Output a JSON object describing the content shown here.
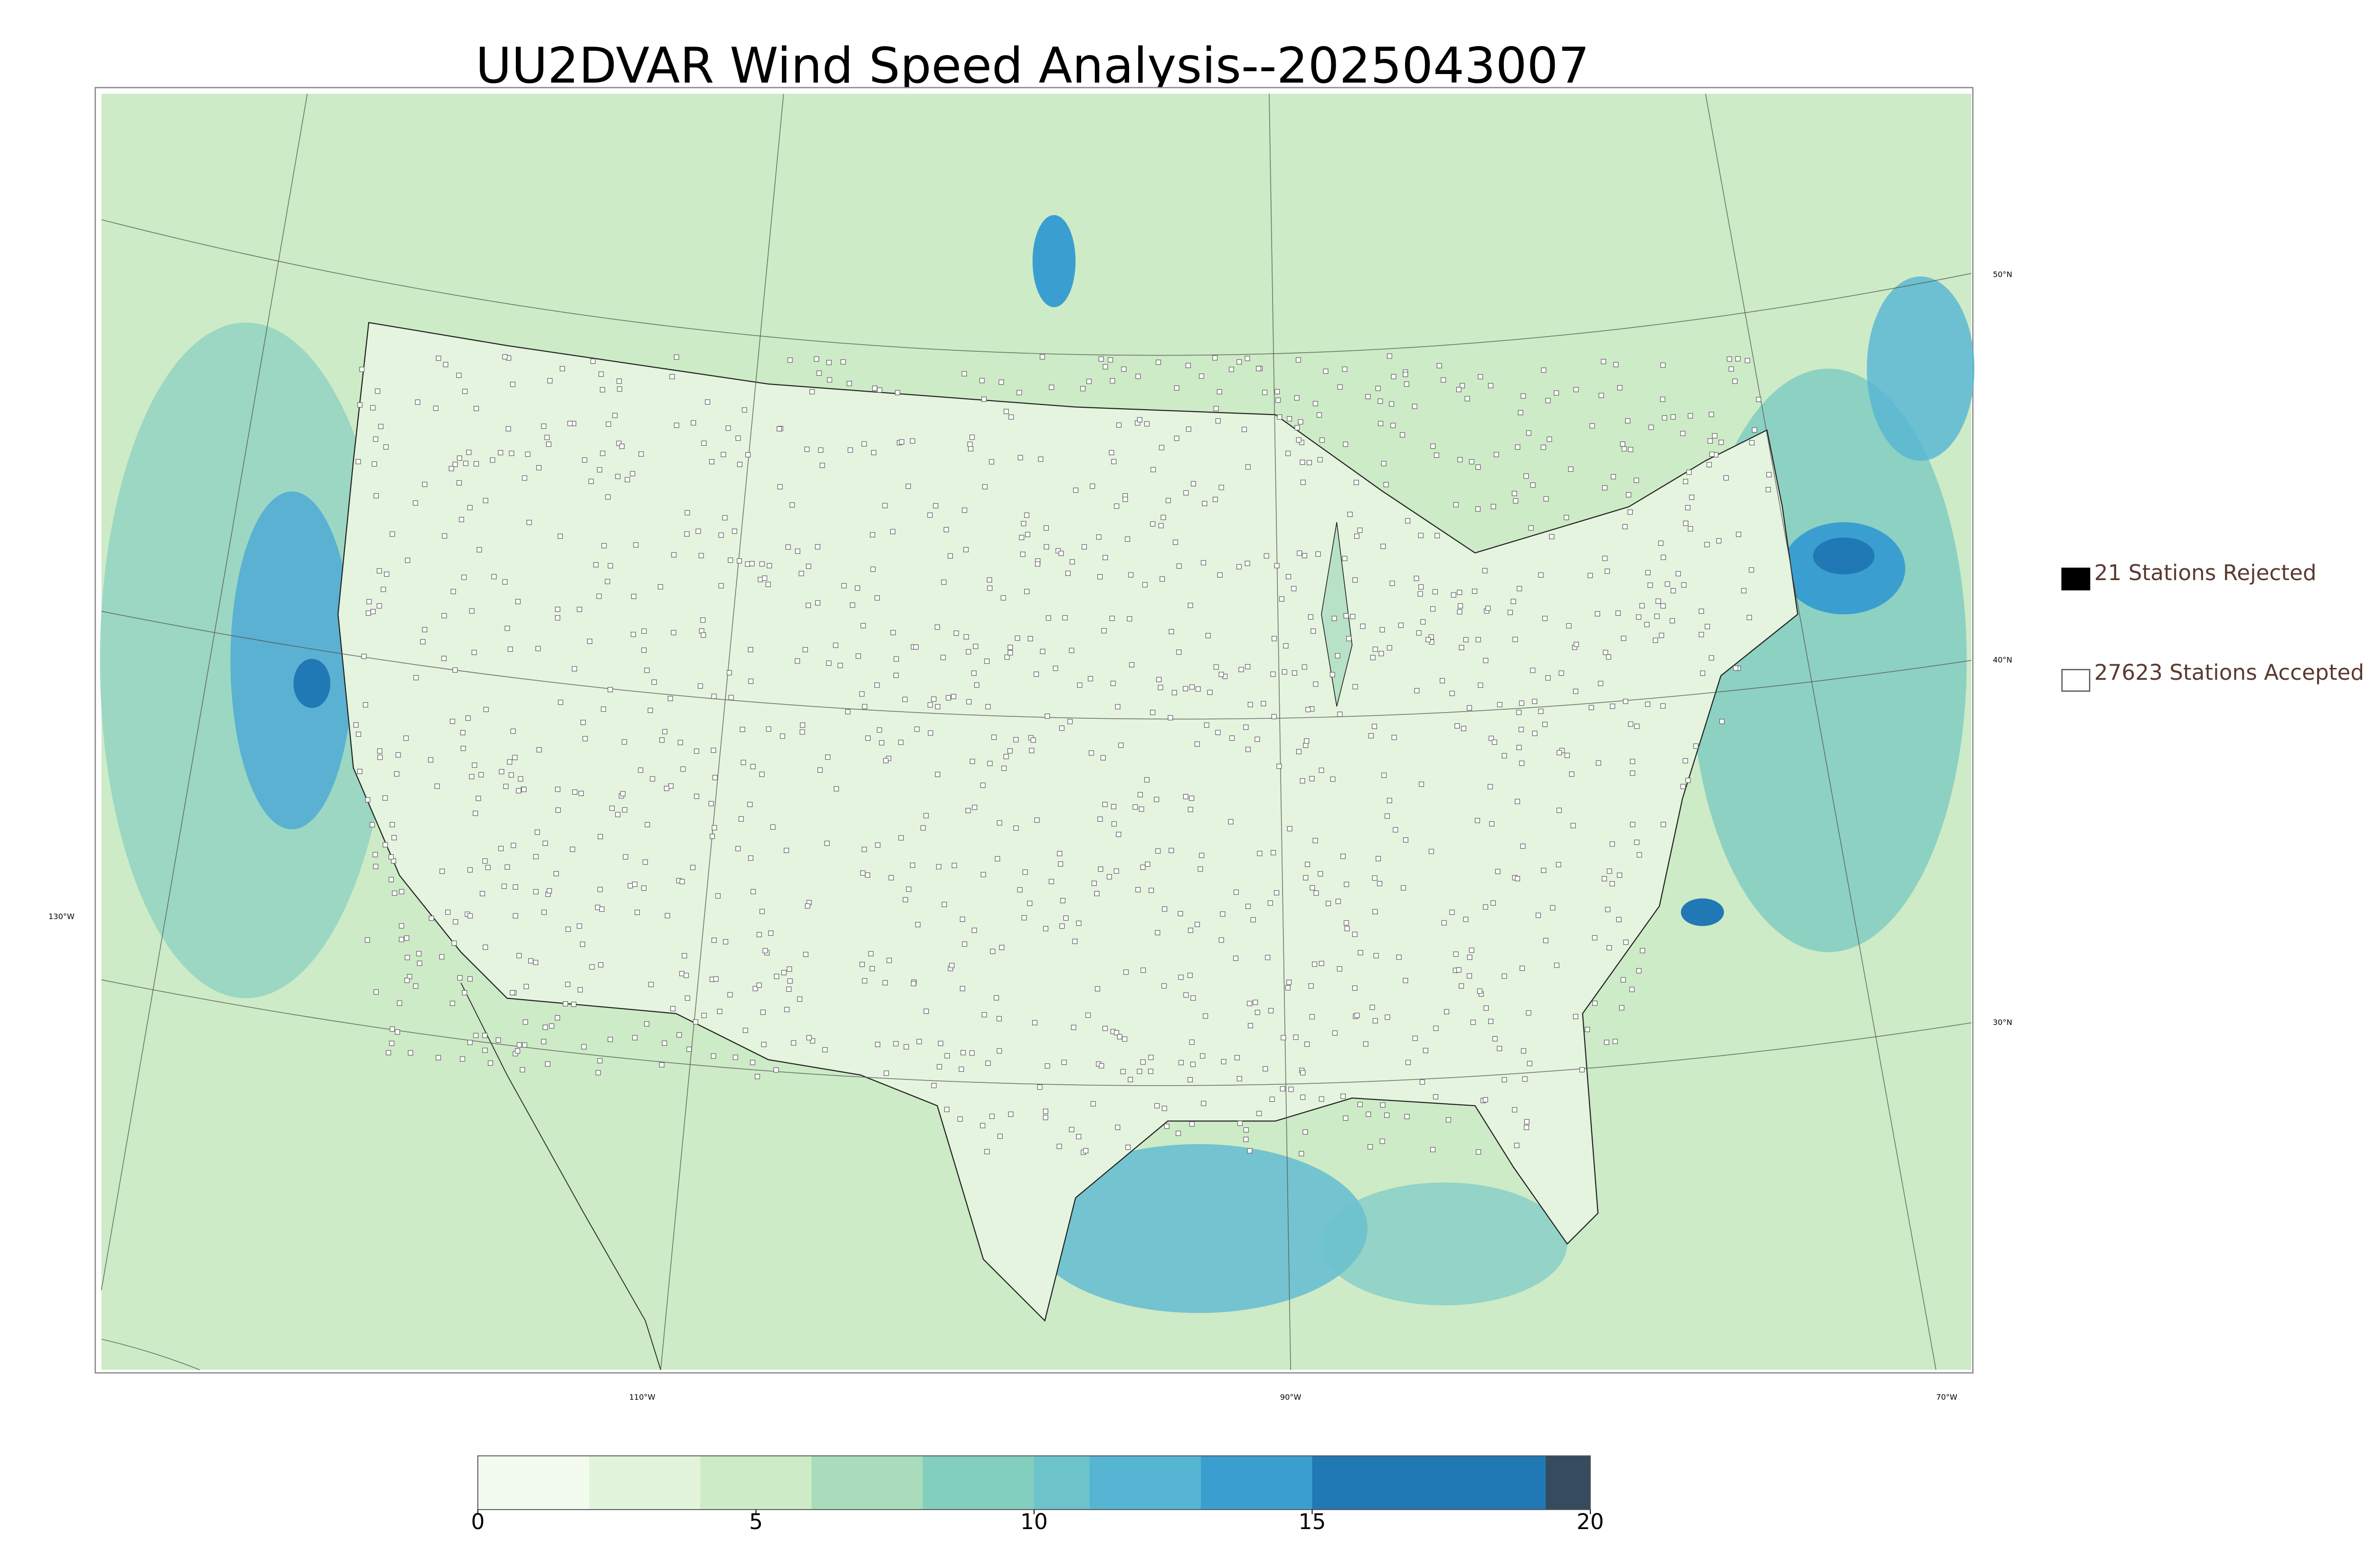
{
  "title": "UU2DVAR Wind Speed Analysis--2025043007",
  "legend": [
    {
      "label": "21 Stations Rejected",
      "color": "#000000",
      "filled": true
    },
    {
      "label": "27623 Stations Accepted",
      "color": "#555555",
      "filled": false
    }
  ],
  "graticule": {
    "lat_labels": [
      "50°N",
      "40°N",
      "30°N"
    ],
    "lon_labels": [
      "130°W",
      "110°W",
      "90°W",
      "70°W"
    ]
  },
  "colorbar": {
    "lim": [
      0,
      20
    ],
    "ticks": [
      0,
      5,
      10,
      15,
      20
    ],
    "bands": [
      {
        "from": 0,
        "to": 2,
        "color": "#f3fbee"
      },
      {
        "from": 2,
        "to": 4,
        "color": "#e2f4dc"
      },
      {
        "from": 4,
        "to": 6,
        "color": "#cdebc6"
      },
      {
        "from": 6,
        "to": 8,
        "color": "#a8dcba"
      },
      {
        "from": 8,
        "to": 10,
        "color": "#82cfc0"
      },
      {
        "from": 10,
        "to": 11,
        "color": "#6cc3c9"
      },
      {
        "from": 11,
        "to": 13,
        "color": "#55b5d3"
      },
      {
        "from": 13,
        "to": 15,
        "color": "#3a9fd0"
      },
      {
        "from": 15,
        "to": 19.2,
        "color": "#2079b5"
      },
      {
        "from": 19.2,
        "to": 20,
        "color": "#364b5e"
      }
    ]
  }
}
